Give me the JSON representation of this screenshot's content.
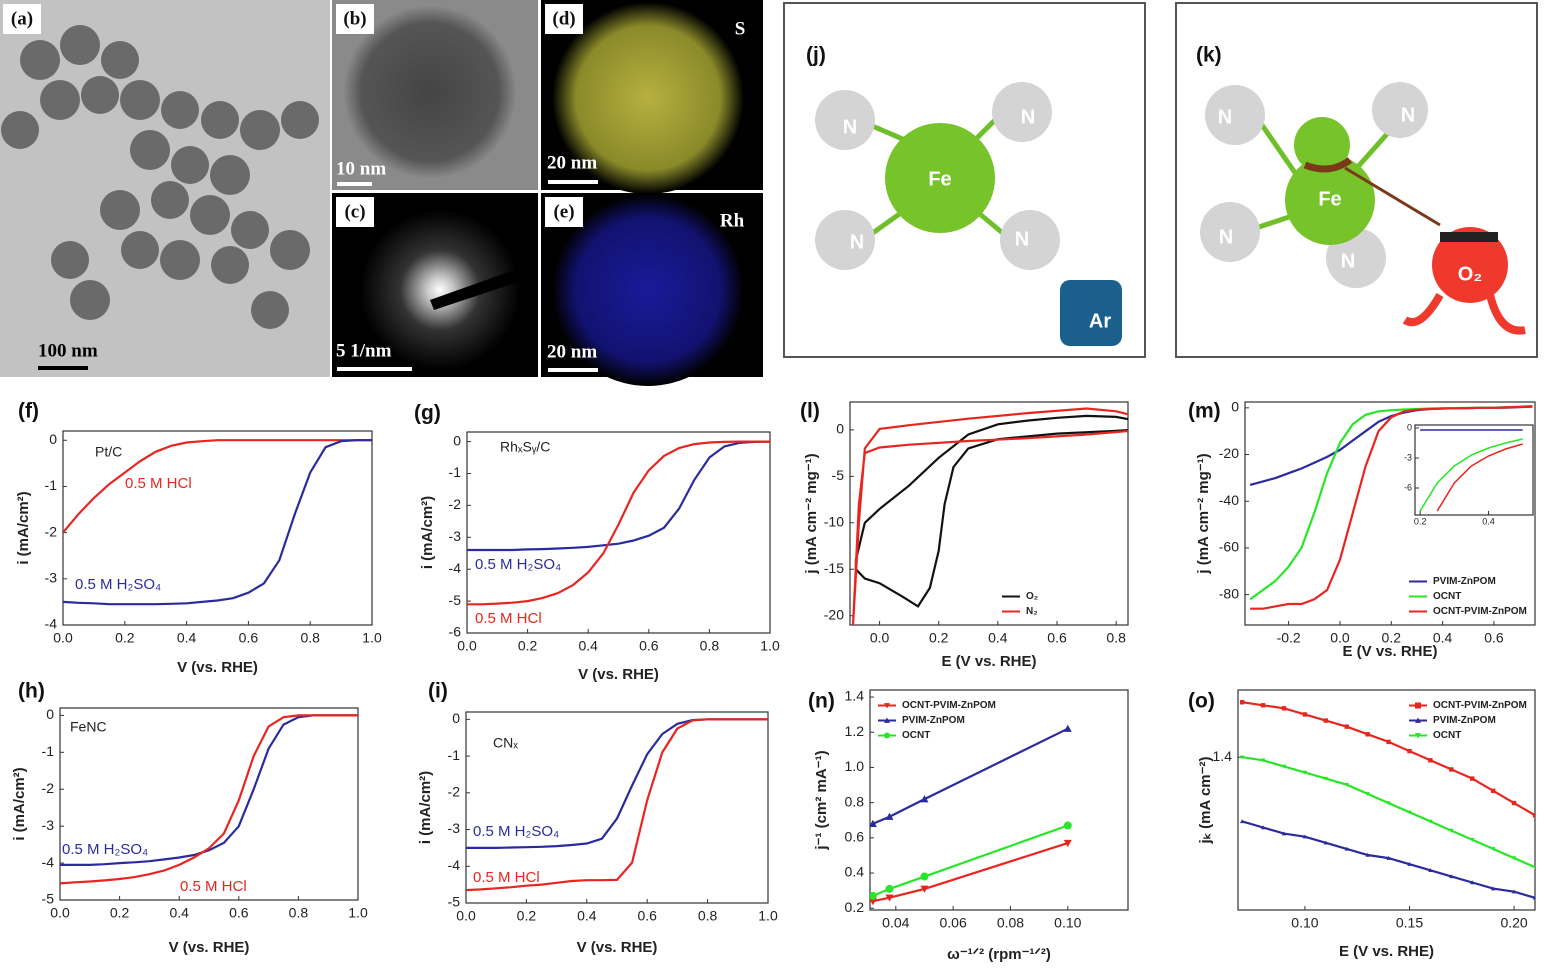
{
  "micrographs": [
    {
      "label": "(a)",
      "scale_bar": "100 nm"
    },
    {
      "label": "(b)",
      "scale_bar": "10 nm"
    },
    {
      "label": "(c)",
      "scale_bar": "5 1/nm"
    },
    {
      "label": "(d)",
      "scale_bar": "20 nm",
      "element": "S"
    },
    {
      "label": "(e)",
      "scale_bar": "20 nm",
      "element": "Rh"
    }
  ],
  "diagrams": [
    {
      "label": "(j)",
      "center": "Fe",
      "ligands": [
        "N",
        "N",
        "N",
        "N"
      ],
      "molecule": "Ar"
    },
    {
      "label": "(k)",
      "center": "Fe",
      "ligands": [
        "N",
        "N",
        "N",
        "N"
      ],
      "molecule": "O₂"
    }
  ],
  "chart_data": [
    {
      "type": "line",
      "panel": "(f)",
      "x_label": "V (vs. RHE)",
      "y_label": "i (mA/cm²)",
      "annotations": [
        "Pt/C"
      ],
      "x": [
        0,
        0.05,
        0.1,
        0.15,
        0.2,
        0.25,
        0.3,
        0.35,
        0.4,
        0.45,
        0.5,
        0.55,
        0.6,
        0.65,
        0.7,
        0.75,
        0.8,
        0.85,
        0.9,
        0.95,
        1.0
      ],
      "series": [
        {
          "name": "0.5 M HCl",
          "color": "#e8251f",
          "values": [
            -2.0,
            -1.6,
            -1.25,
            -0.95,
            -0.7,
            -0.45,
            -0.25,
            -0.12,
            -0.05,
            -0.02,
            0,
            0,
            0,
            0,
            0,
            0,
            0,
            0,
            0,
            0,
            0
          ]
        },
        {
          "name": "0.5 M H₂SO₄",
          "color": "#2b2b9e",
          "values": [
            -3.5,
            -3.52,
            -3.53,
            -3.55,
            -3.55,
            -3.55,
            -3.55,
            -3.54,
            -3.53,
            -3.5,
            -3.47,
            -3.42,
            -3.3,
            -3.1,
            -2.6,
            -1.6,
            -0.7,
            -0.15,
            -0.02,
            0,
            0
          ]
        }
      ],
      "xlim": [
        0,
        1
      ],
      "xticks": [
        {
          "value": 0,
          "label": "0.0"
        },
        0.2,
        0.4,
        0.6,
        0.8,
        {
          "value": 1,
          "label": "1.0"
        }
      ],
      "ylim": [
        -4,
        0.2
      ],
      "yticks": [
        0,
        -1,
        -2,
        -3,
        -4
      ]
    },
    {
      "type": "line",
      "panel": "(g)",
      "x_label": "V (vs. RHE)",
      "y_label": "i (mA/cm²)",
      "annotations": [
        "RhₓSᵧ/C"
      ],
      "x": [
        0,
        0.05,
        0.1,
        0.15,
        0.2,
        0.25,
        0.3,
        0.35,
        0.4,
        0.45,
        0.5,
        0.55,
        0.6,
        0.65,
        0.7,
        0.75,
        0.8,
        0.85,
        0.9,
        0.95,
        1.0
      ],
      "series": [
        {
          "name": "0.5 M H₂SO₄",
          "color": "#2b2b9e",
          "values": [
            -3.4,
            -3.4,
            -3.4,
            -3.4,
            -3.38,
            -3.37,
            -3.35,
            -3.33,
            -3.3,
            -3.25,
            -3.2,
            -3.1,
            -2.95,
            -2.7,
            -2.1,
            -1.2,
            -0.5,
            -0.15,
            -0.04,
            -0.01,
            0
          ]
        },
        {
          "name": "0.5 M HCl",
          "color": "#e8251f",
          "values": [
            -5.1,
            -5.1,
            -5.08,
            -5.05,
            -5.0,
            -4.9,
            -4.75,
            -4.5,
            -4.1,
            -3.5,
            -2.6,
            -1.6,
            -0.9,
            -0.45,
            -0.2,
            -0.08,
            -0.03,
            -0.01,
            0,
            0,
            0
          ]
        }
      ],
      "xlim": [
        0,
        1
      ],
      "xticks": [
        {
          "value": 0,
          "label": "0.0"
        },
        0.2,
        0.4,
        0.6,
        0.8,
        {
          "value": 1,
          "label": "1.0"
        }
      ],
      "ylim": [
        -6,
        0.3
      ],
      "yticks": [
        0,
        -1,
        -2,
        -3,
        -4,
        -5,
        -6
      ]
    },
    {
      "type": "line",
      "panel": "(h)",
      "x_label": "V (vs. RHE)",
      "y_label": "i (mA/cm²)",
      "annotations": [
        "FeNC"
      ],
      "x": [
        0,
        0.05,
        0.1,
        0.15,
        0.2,
        0.25,
        0.3,
        0.35,
        0.4,
        0.45,
        0.5,
        0.55,
        0.6,
        0.65,
        0.7,
        0.75,
        0.8,
        0.85,
        0.9,
        0.95,
        1.0
      ],
      "series": [
        {
          "name": "0.5 M H₂SO₄",
          "color": "#2b2b9e",
          "values": [
            -4.05,
            -4.05,
            -4.05,
            -4.03,
            -4.0,
            -3.98,
            -3.95,
            -3.9,
            -3.85,
            -3.78,
            -3.65,
            -3.45,
            -3.0,
            -2.0,
            -0.9,
            -0.25,
            -0.05,
            0,
            0,
            0,
            0
          ]
        },
        {
          "name": "0.5 M HCl",
          "color": "#e8251f",
          "values": [
            -4.55,
            -4.52,
            -4.5,
            -4.47,
            -4.43,
            -4.38,
            -4.3,
            -4.2,
            -4.05,
            -3.85,
            -3.6,
            -3.2,
            -2.3,
            -1.1,
            -0.3,
            -0.05,
            0,
            0,
            0,
            0,
            0
          ]
        }
      ],
      "xlim": [
        0,
        1
      ],
      "xticks": [
        {
          "value": 0,
          "label": "0.0"
        },
        0.2,
        0.4,
        0.6,
        0.8,
        {
          "value": 1,
          "label": "1.0"
        }
      ],
      "ylim": [
        -5,
        0.2
      ],
      "yticks": [
        0,
        -1,
        -2,
        -3,
        -4,
        -5
      ]
    },
    {
      "type": "line",
      "panel": "(i)",
      "x_label": "V (vs. RHE)",
      "y_label": "i (mA/cm²)",
      "annotations": [
        "CNₓ"
      ],
      "x": [
        0,
        0.05,
        0.1,
        0.15,
        0.2,
        0.25,
        0.3,
        0.35,
        0.4,
        0.45,
        0.5,
        0.55,
        0.6,
        0.65,
        0.7,
        0.75,
        0.8,
        0.85,
        0.9,
        0.95,
        1.0
      ],
      "series": [
        {
          "name": "0.5 M H₂SO₄",
          "color": "#2b2b9e",
          "values": [
            -3.5,
            -3.5,
            -3.5,
            -3.49,
            -3.48,
            -3.47,
            -3.45,
            -3.42,
            -3.38,
            -3.25,
            -2.7,
            -1.8,
            -0.95,
            -0.4,
            -0.12,
            -0.02,
            0,
            0,
            0,
            0,
            0
          ]
        },
        {
          "name": "0.5 M HCl",
          "color": "#e8251f",
          "values": [
            -4.65,
            -4.63,
            -4.6,
            -4.57,
            -4.53,
            -4.5,
            -4.45,
            -4.4,
            -4.38,
            -4.38,
            -4.37,
            -3.9,
            -2.2,
            -0.9,
            -0.25,
            -0.03,
            0,
            0,
            0,
            0,
            0
          ]
        }
      ],
      "xlim": [
        0,
        1
      ],
      "xticks": [
        {
          "value": 0,
          "label": "0.0"
        },
        0.2,
        0.4,
        0.6,
        0.8,
        {
          "value": 1,
          "label": "1.0"
        }
      ],
      "ylim": [
        -5,
        0.2
      ],
      "yticks": [
        0,
        -1,
        -2,
        -3,
        -4,
        -5
      ]
    },
    {
      "type": "line",
      "panel": "(l)",
      "x_label": "E (V vs. RHE)",
      "y_label": "j (mA cm⁻² mg⁻¹)",
      "legend": "lower right",
      "series": [
        {
          "name": "O₂",
          "color": "#111111",
          "x": [
            0.85,
            0.8,
            0.6,
            0.4,
            0.3,
            0.25,
            0.22,
            0.2,
            0.17,
            0.13,
            0.08,
            0.0,
            -0.05,
            -0.08,
            -0.08,
            -0.05,
            0.0,
            0.1,
            0.2,
            0.3,
            0.4,
            0.5,
            0.6,
            0.7,
            0.8,
            0.85
          ],
          "values": [
            0,
            -0.1,
            -0.4,
            -1,
            -2,
            -4,
            -8,
            -13,
            -17,
            -19,
            -18,
            -16.5,
            -16,
            -15,
            -14,
            -10,
            -8.5,
            -6,
            -3,
            -0.5,
            0.6,
            1.0,
            1.3,
            1.5,
            1.4,
            1.1
          ]
        },
        {
          "name": "N₂",
          "color": "#e8251f",
          "x": [
            -0.09,
            -0.07,
            -0.05,
            0,
            0.1,
            0.3,
            0.5,
            0.7,
            0.8,
            0.85,
            0.85,
            0.7,
            0.5,
            0.3,
            0.1,
            0,
            -0.05,
            -0.07,
            -0.09
          ],
          "values": [
            -21,
            -10,
            -2,
            0.1,
            0.5,
            1.2,
            1.8,
            2.3,
            2.0,
            1.6,
            -0.1,
            -0.5,
            -0.9,
            -1.2,
            -1.6,
            -1.9,
            -2.5,
            -8,
            -21
          ]
        }
      ],
      "xlim": [
        -0.1,
        0.84
      ],
      "xticks": [
        {
          "value": 0,
          "label": "0.0"
        },
        0.2,
        0.4,
        0.6,
        0.8
      ],
      "ylim": [
        -21,
        3
      ],
      "yticks": [
        0,
        -5,
        -10,
        -15,
        -20
      ]
    },
    {
      "type": "line",
      "panel": "(m)",
      "x_label": "E (V vs. RHE)",
      "y_label": "j (mA cm⁻² mg⁻¹)",
      "legend": "lower right",
      "x": [
        -0.35,
        -0.3,
        -0.25,
        -0.2,
        -0.15,
        -0.1,
        -0.05,
        0,
        0.05,
        0.1,
        0.15,
        0.2,
        0.25,
        0.3,
        0.35,
        0.4,
        0.45,
        0.5,
        0.55,
        0.6,
        0.65,
        0.7,
        0.75
      ],
      "series": [
        {
          "name": "PVIM-ZnPOM",
          "color": "#2b2b9e",
          "values": [
            -33,
            -31.5,
            -30,
            -28,
            -26,
            -23.5,
            -21,
            -18,
            -14,
            -10,
            -6,
            -3.5,
            -2,
            -1,
            -0.5,
            -0.3,
            -0.2,
            -0.1,
            0,
            0,
            0.1,
            0.3,
            0.5
          ]
        },
        {
          "name": "OCNT",
          "color": "#27e627",
          "values": [
            -82,
            -78,
            -74,
            -68,
            -60,
            -45,
            -28,
            -15,
            -7,
            -3,
            -1.5,
            -1,
            -0.7,
            -0.5,
            -0.3,
            -0.2,
            -0.1,
            0,
            0,
            0.1,
            0.3,
            0.5,
            0.8
          ]
        },
        {
          "name": "OCNT-PVIM-ZnPOM",
          "color": "#e8251f",
          "values": [
            -86,
            -86,
            -85,
            -84,
            -84,
            -82,
            -78,
            -65,
            -45,
            -25,
            -10,
            -4,
            -1.5,
            -0.8,
            -0.5,
            -0.3,
            -0.2,
            -0.1,
            0,
            0,
            0.2,
            0.4,
            0.6
          ]
        }
      ],
      "xlim": [
        -0.37,
        0.76
      ],
      "xticks": [
        -0.2,
        {
          "value": 0,
          "label": "0.0"
        },
        0.2,
        0.4,
        0.6
      ],
      "ylim": [
        -93,
        2.5
      ],
      "yticks": [
        0,
        -20,
        -40,
        -60,
        -80
      ]
    },
    {
      "type": "line",
      "x": [
        0.2,
        0.25,
        0.3,
        0.35,
        0.4,
        0.45,
        0.5
      ],
      "series": [
        {
          "color": "#2b2b9e",
          "values": [
            -0.2,
            -0.2,
            -0.2,
            -0.2,
            -0.2,
            -0.2,
            -0.2
          ]
        },
        {
          "color": "#27e627",
          "values": [
            -8.3,
            -5.5,
            -3.8,
            -2.7,
            -2.0,
            -1.5,
            -1.1
          ]
        },
        {
          "color": "#e8251f",
          "values": [
            null,
            -8.3,
            -5.5,
            -3.8,
            -2.8,
            -2.1,
            -1.6
          ]
        }
      ],
      "xlim": [
        0.185,
        0.53
      ],
      "xticks": [
        0.2,
        0.4
      ],
      "ylim": [
        -8.7,
        0.3
      ],
      "yticks": [
        0,
        -3,
        -6
      ]
    },
    {
      "type": "line",
      "panel": "(n)",
      "x_label": "ω⁻¹ᐟ² (rpm⁻¹ᐟ²)",
      "y_label": "j⁻¹ (cm² mA⁻¹)",
      "legend": "upper left",
      "x": [
        0.032,
        0.0378,
        0.05,
        0.1
      ],
      "series": [
        {
          "name": "OCNT-PVIM-ZnPOM",
          "color": "#e8251f",
          "marker": "triangle-down",
          "values": [
            0.24,
            0.26,
            0.31,
            0.57
          ]
        },
        {
          "name": "PVIM-ZnPOM",
          "color": "#2b2b9e",
          "marker": "triangle-up",
          "values": [
            0.68,
            0.72,
            0.82,
            1.22
          ]
        },
        {
          "name": "OCNT",
          "color": "#27e627",
          "marker": "circle",
          "values": [
            0.27,
            0.31,
            0.38,
            0.67
          ]
        }
      ],
      "xlim": [
        0.031,
        0.121
      ],
      "xticks": [
        0.04,
        0.06,
        0.08,
        {
          "value": 0.1,
          "label": "0.10"
        }
      ],
      "ylim": [
        0.19,
        1.44
      ],
      "yticks": [
        0.2,
        0.4,
        0.6,
        0.8,
        {
          "value": 1,
          "label": "1.0"
        },
        1.2,
        1.4
      ]
    },
    {
      "type": "line",
      "panel": "(o)",
      "x_label": "E (V vs. RHE)",
      "y_label": "jₖ (mA cm⁻²)",
      "legend": "upper right",
      "x": [
        0.07,
        0.08,
        0.09,
        0.1,
        0.11,
        0.12,
        0.13,
        0.14,
        0.15,
        0.16,
        0.17,
        0.18,
        0.19,
        0.2,
        0.21
      ],
      "series": [
        {
          "name": "OCNT-PVIM-ZnPOM",
          "color": "#e8251f",
          "marker": "square",
          "values": [
            1.58,
            1.57,
            1.56,
            1.54,
            1.52,
            1.5,
            1.475,
            1.45,
            1.42,
            1.39,
            1.36,
            1.33,
            1.29,
            1.25,
            1.21
          ]
        },
        {
          "name": "PVIM-ZnPOM",
          "color": "#2b2b9e",
          "marker": "triangle-up",
          "values": [
            1.19,
            1.17,
            1.15,
            1.14,
            1.12,
            1.1,
            1.08,
            1.07,
            1.05,
            1.03,
            1.01,
            0.99,
            0.97,
            0.96,
            0.94
          ]
        },
        {
          "name": "OCNT",
          "color": "#27e627",
          "marker": "triangle-down",
          "values": [
            1.4,
            1.39,
            1.37,
            1.35,
            1.33,
            1.31,
            1.28,
            1.25,
            1.22,
            1.19,
            1.16,
            1.13,
            1.1,
            1.07,
            1.04
          ]
        }
      ],
      "xlim": [
        0.068,
        0.21
      ],
      "xticks": [
        {
          "value": 0.1,
          "label": "0.10"
        },
        0.15,
        {
          "value": 0.2,
          "label": "0.20"
        }
      ],
      "ylim": [
        0.9,
        1.62
      ],
      "yticks": [
        1.4
      ]
    }
  ]
}
